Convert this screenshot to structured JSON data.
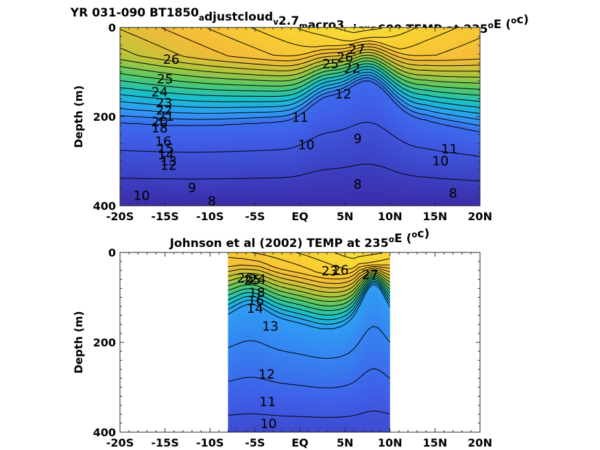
{
  "chart_data": [
    {
      "type": "heatmap",
      "title_parts": [
        {
          "text": "YR 031-090 BT1850",
          "shift": ""
        },
        {
          "text": "a",
          "shift": "sub"
        },
        {
          "text": "djustcloud",
          "shift": ""
        },
        {
          "text": "v",
          "shift": "sub"
        },
        {
          "text": "2.7",
          "shift": ""
        },
        {
          "text": "m",
          "shift": "sub"
        },
        {
          "text": "acro3",
          "shift": ""
        },
        {
          "text": "m",
          "shift": "sub"
        },
        {
          "text": "icro600 TEMP at 235",
          "shift": ""
        },
        {
          "text": "o",
          "shift": "super"
        },
        {
          "text": "E (",
          "shift": ""
        },
        {
          "text": "o",
          "shift": "super"
        },
        {
          "text": "c)",
          "shift": ""
        }
      ],
      "ylabel": "Depth (m)",
      "x_ticks": [
        "-20S",
        "-15S",
        "-10S",
        "-5S",
        "EQ",
        "5N",
        "10N",
        "15N",
        "20N"
      ],
      "x_values": [
        -20,
        -15,
        -10,
        -5,
        0,
        5,
        10,
        15,
        20
      ],
      "y_ticks": [
        "0",
        "200",
        "400"
      ],
      "y_values": [
        0,
        200,
        400
      ],
      "xlim": [
        -20,
        20
      ],
      "ylim": [
        0,
        400
      ],
      "y_reversed": true,
      "data_xlim": [
        -20,
        20
      ],
      "colormap": [
        "#3b2ca8",
        "#3f5fe8",
        "#2f9df5",
        "#18c0c9",
        "#55c965",
        "#b8c43a",
        "#f4bb39",
        "#f9cf32",
        "#f6e33a"
      ],
      "temperature_range": [
        8,
        28
      ],
      "contour_labels": [
        {
          "text": "26",
          "lat": -14.3,
          "depth": 72
        },
        {
          "text": "25",
          "lat": -15.0,
          "depth": 116
        },
        {
          "text": "24",
          "lat": -15.6,
          "depth": 145
        },
        {
          "text": "23",
          "lat": -15.1,
          "depth": 170
        },
        {
          "text": "22",
          "lat": -15.1,
          "depth": 186
        },
        {
          "text": "21",
          "lat": -14.9,
          "depth": 200
        },
        {
          "text": "20",
          "lat": -15.6,
          "depth": 212
        },
        {
          "text": "18",
          "lat": -15.6,
          "depth": 226
        },
        {
          "text": "16",
          "lat": -15.2,
          "depth": 256
        },
        {
          "text": "15",
          "lat": -14.9,
          "depth": 272
        },
        {
          "text": "14",
          "lat": -14.9,
          "depth": 286
        },
        {
          "text": "13",
          "lat": -14.6,
          "depth": 300
        },
        {
          "text": "12",
          "lat": -14.6,
          "depth": 310
        },
        {
          "text": "10",
          "lat": -17.6,
          "depth": 378
        },
        {
          "text": "9",
          "lat": -12.0,
          "depth": 360
        },
        {
          "text": "8",
          "lat": -9.8,
          "depth": 390
        },
        {
          "text": "11",
          "lat": 0.0,
          "depth": 202
        },
        {
          "text": "10",
          "lat": 0.7,
          "depth": 264
        },
        {
          "text": "9",
          "lat": 6.4,
          "depth": 250
        },
        {
          "text": "8",
          "lat": 6.4,
          "depth": 352
        },
        {
          "text": "26",
          "lat": 5.0,
          "depth": 68
        },
        {
          "text": "27",
          "lat": 6.3,
          "depth": 50
        },
        {
          "text": "25",
          "lat": 3.4,
          "depth": 82
        },
        {
          "text": "22",
          "lat": 5.8,
          "depth": 92
        },
        {
          "text": "12",
          "lat": 4.8,
          "depth": 150
        },
        {
          "text": "11",
          "lat": 16.6,
          "depth": 273
        },
        {
          "text": "10",
          "lat": 15.6,
          "depth": 300
        },
        {
          "text": "8",
          "lat": 17.0,
          "depth": 372
        }
      ]
    },
    {
      "type": "heatmap",
      "title_parts": [
        {
          "text": "Johnson et al (2002) TEMP at 235",
          "shift": ""
        },
        {
          "text": "o",
          "shift": "super"
        },
        {
          "text": "E (",
          "shift": ""
        },
        {
          "text": "o",
          "shift": "super"
        },
        {
          "text": "c)",
          "shift": ""
        }
      ],
      "ylabel": "Depth (m)",
      "x_ticks": [
        "-20S",
        "-15S",
        "-10S",
        "-5S",
        "EQ",
        "5N",
        "10N",
        "15N",
        "20N"
      ],
      "x_values": [
        -20,
        -15,
        -10,
        -5,
        0,
        5,
        10,
        15,
        20
      ],
      "y_ticks": [
        "0",
        "200",
        "400"
      ],
      "y_values": [
        0,
        200,
        400
      ],
      "xlim": [
        -20,
        20
      ],
      "ylim": [
        0,
        400
      ],
      "y_reversed": true,
      "data_xlim": [
        -8,
        10
      ],
      "colormap": [
        "#3b2ca8",
        "#3f5fe8",
        "#2f9df5",
        "#18c0c9",
        "#55c965",
        "#b8c43a",
        "#f4bb39",
        "#f9cf32",
        "#f6e33a"
      ],
      "temperature_range": [
        8,
        28
      ],
      "contour_labels": [
        {
          "text": "26",
          "lat": -6.1,
          "depth": 58
        },
        {
          "text": "25",
          "lat": -5.3,
          "depth": 62
        },
        {
          "text": "24",
          "lat": -4.7,
          "depth": 60
        },
        {
          "text": "18",
          "lat": -4.8,
          "depth": 90
        },
        {
          "text": "16",
          "lat": -4.9,
          "depth": 108
        },
        {
          "text": "14",
          "lat": -5.0,
          "depth": 125
        },
        {
          "text": "13",
          "lat": -3.3,
          "depth": 165
        },
        {
          "text": "12",
          "lat": -3.7,
          "depth": 272
        },
        {
          "text": "11",
          "lat": -3.6,
          "depth": 333
        },
        {
          "text": "10",
          "lat": -3.5,
          "depth": 382
        },
        {
          "text": "23",
          "lat": 3.3,
          "depth": 42
        },
        {
          "text": "26",
          "lat": 4.5,
          "depth": 40
        },
        {
          "text": "27",
          "lat": 7.8,
          "depth": 50
        }
      ]
    }
  ]
}
